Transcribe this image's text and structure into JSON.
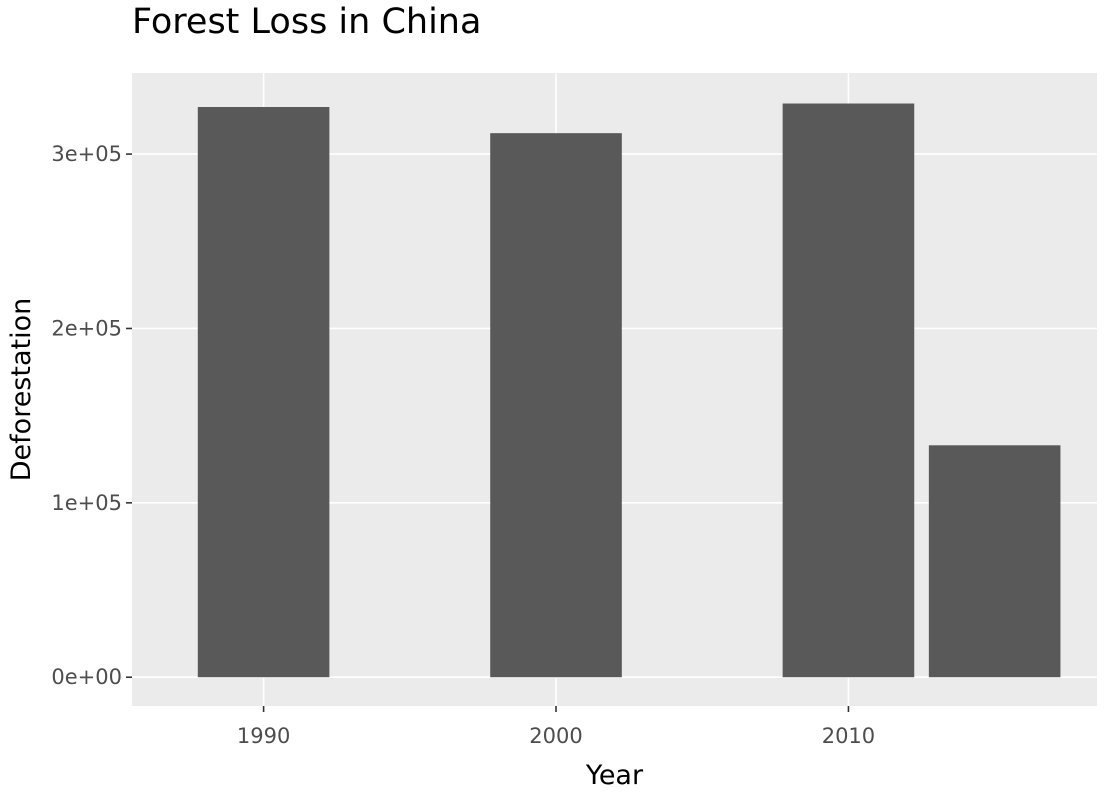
{
  "chart_data": {
    "type": "bar",
    "title": "Forest Loss in China",
    "xlabel": "Year",
    "ylabel": "Deforestation",
    "x": [
      1990,
      2000,
      2010,
      2015
    ],
    "values": [
      327000,
      312000,
      329000,
      133000
    ],
    "xlim": [
      1985.5,
      2018.5
    ],
    "ylim": [
      -16500,
      346500
    ],
    "x_ticks": [
      1990,
      2000,
      2010
    ],
    "x_tick_labels": [
      "1990",
      "2000",
      "2010"
    ],
    "y_ticks": [
      0,
      100000,
      200000,
      300000
    ],
    "y_tick_labels": [
      "0e+00",
      "1e+05",
      "2e+05",
      "3e+05"
    ],
    "bar_width_years": 4.5,
    "grid": true,
    "colors": {
      "bar": "#595959",
      "panel": "#ebebeb",
      "grid": "#ffffff",
      "tick_text": "#4d4d4d",
      "tick_mark": "#333333"
    }
  }
}
